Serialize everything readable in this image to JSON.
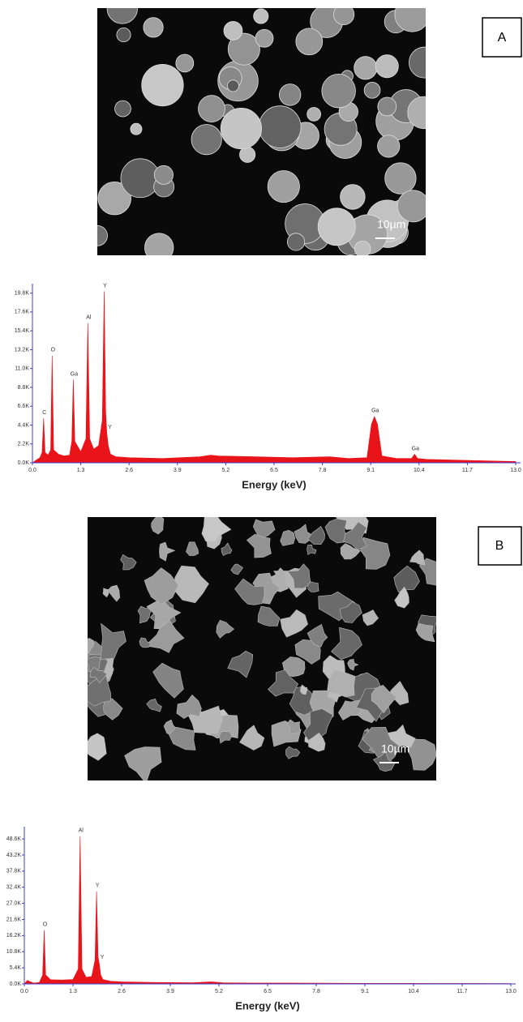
{
  "chart_data": [
    {
      "type": "area",
      "xlabel": "Energy (keV)",
      "x": [
        0.0,
        0.1,
        0.2,
        0.26,
        0.3,
        0.34,
        0.42,
        0.49,
        0.53,
        0.57,
        0.7,
        0.85,
        1.0,
        1.06,
        1.1,
        1.14,
        1.3,
        1.44,
        1.49,
        1.54,
        1.65,
        1.78,
        1.88,
        1.93,
        1.97,
        2.0,
        2.04,
        2.1,
        2.25,
        2.6,
        3.5,
        4.5,
        4.8,
        5.0,
        6.0,
        7.0,
        8.0,
        8.5,
        9.0,
        9.12,
        9.2,
        9.28,
        9.4,
        9.8,
        10.2,
        10.28,
        10.36,
        10.6,
        11.5,
        12.5,
        13.0
      ],
      "series": [
        {
          "color": "#e8141a",
          "values": [
            0,
            300,
            600,
            1200,
            5200,
            1200,
            900,
            1500,
            12500,
            1500,
            1000,
            800,
            900,
            2500,
            9700,
            2500,
            1300,
            2800,
            16300,
            2800,
            1600,
            2000,
            5000,
            20000,
            6000,
            3500,
            2000,
            1000,
            700,
            600,
            500,
            700,
            900,
            800,
            700,
            600,
            700,
            500,
            600,
            4500,
            5400,
            4500,
            800,
            500,
            500,
            1000,
            500,
            400,
            300,
            200,
            150
          ]
        }
      ],
      "annotations": [
        {
          "text": "C",
          "x": 0.3,
          "y": 5200
        },
        {
          "text": "O",
          "x": 0.53,
          "y": 12500
        },
        {
          "text": "Ga",
          "x": 1.1,
          "y": 9700
        },
        {
          "text": "Al",
          "x": 1.49,
          "y": 16300
        },
        {
          "text": "Y",
          "x": 1.93,
          "y": 20000
        },
        {
          "text": "Y",
          "x": 2.06,
          "y": 3500
        },
        {
          "text": "Ga",
          "x": 9.2,
          "y": 5400
        },
        {
          "text": "Ga",
          "x": 10.28,
          "y": 1000
        }
      ],
      "xlim": [
        0,
        13.0
      ],
      "xticks": [
        {
          "value": 0,
          "label": "0.0"
        },
        1.3,
        2.6,
        3.9,
        5.2,
        6.5,
        7.8,
        9.1,
        10.4,
        11.7,
        {
          "value": 13,
          "label": "13.0"
        }
      ],
      "ylim": [
        0,
        20900
      ],
      "yticks": [
        {
          "value": 0,
          "label": "0.0K"
        },
        {
          "value": 2200,
          "label": "2.2K"
        },
        {
          "value": 4400,
          "label": "4.4K"
        },
        {
          "value": 6600,
          "label": "6.6K"
        },
        {
          "value": 8800,
          "label": "8.8K"
        },
        {
          "value": 11000,
          "label": "11.0K"
        },
        {
          "value": 13200,
          "label": "13.2K"
        },
        {
          "value": 15400,
          "label": "15.4K"
        },
        {
          "value": 17600,
          "label": "17.6K"
        },
        {
          "value": 19800,
          "label": "19.8K"
        }
      ],
      "axis_color": "#3b3bd0",
      "grid": false
    },
    {
      "type": "area",
      "xlabel": "Energy (keV)",
      "x": [
        0.0,
        0.08,
        0.15,
        0.25,
        0.4,
        0.49,
        0.53,
        0.57,
        0.7,
        1.0,
        1.3,
        1.44,
        1.49,
        1.54,
        1.65,
        1.8,
        1.89,
        1.93,
        1.97,
        2.0,
        2.04,
        2.1,
        2.3,
        2.6,
        3.5,
        4.5,
        5.0,
        5.3,
        6.0,
        7.0,
        8.0,
        9.0,
        10.0,
        11.0,
        12.0,
        13.0
      ],
      "series": [
        {
          "color": "#e8141a",
          "values": [
            0,
            1200,
            800,
            300,
            500,
            3000,
            18000,
            3000,
            1400,
            1300,
            1500,
            5000,
            49500,
            5000,
            2200,
            2500,
            8000,
            31000,
            9000,
            7000,
            3000,
            1500,
            900,
            700,
            500,
            400,
            700,
            400,
            300,
            300,
            250,
            200,
            200,
            150,
            150,
            100
          ]
        }
      ],
      "annotations": [
        {
          "text": "O",
          "x": 0.53,
          "y": 18000
        },
        {
          "text": "Al",
          "x": 1.49,
          "y": 49500
        },
        {
          "text": "Y",
          "x": 1.93,
          "y": 31000
        },
        {
          "text": "Y",
          "x": 2.06,
          "y": 7000
        }
      ],
      "xlim": [
        0,
        13.0
      ],
      "xticks": [
        {
          "value": 0,
          "label": "0.0"
        },
        1.3,
        2.6,
        3.9,
        5.2,
        6.5,
        7.8,
        9.1,
        10.4,
        11.7,
        {
          "value": 13,
          "label": "13.0"
        }
      ],
      "ylim": [
        0,
        52700
      ],
      "yticks": [
        {
          "value": 0,
          "label": "0.0K"
        },
        {
          "value": 5400,
          "label": "5.4K"
        },
        {
          "value": 10800,
          "label": "10.8K"
        },
        {
          "value": 16200,
          "label": "16.2K"
        },
        {
          "value": 21600,
          "label": "21.6K"
        },
        {
          "value": 27000,
          "label": "27.0K"
        },
        {
          "value": 32400,
          "label": "32.4K"
        },
        {
          "value": 37800,
          "label": "37.8K"
        },
        {
          "value": 43200,
          "label": "43.2K"
        },
        {
          "value": 48600,
          "label": "48.6K"
        }
      ],
      "axis_color": "#3b3bd0",
      "grid": false
    }
  ],
  "panels": [
    {
      "label": "A",
      "scale_bar": "10µm"
    },
    {
      "label": "B",
      "scale_bar": "10µm"
    }
  ]
}
